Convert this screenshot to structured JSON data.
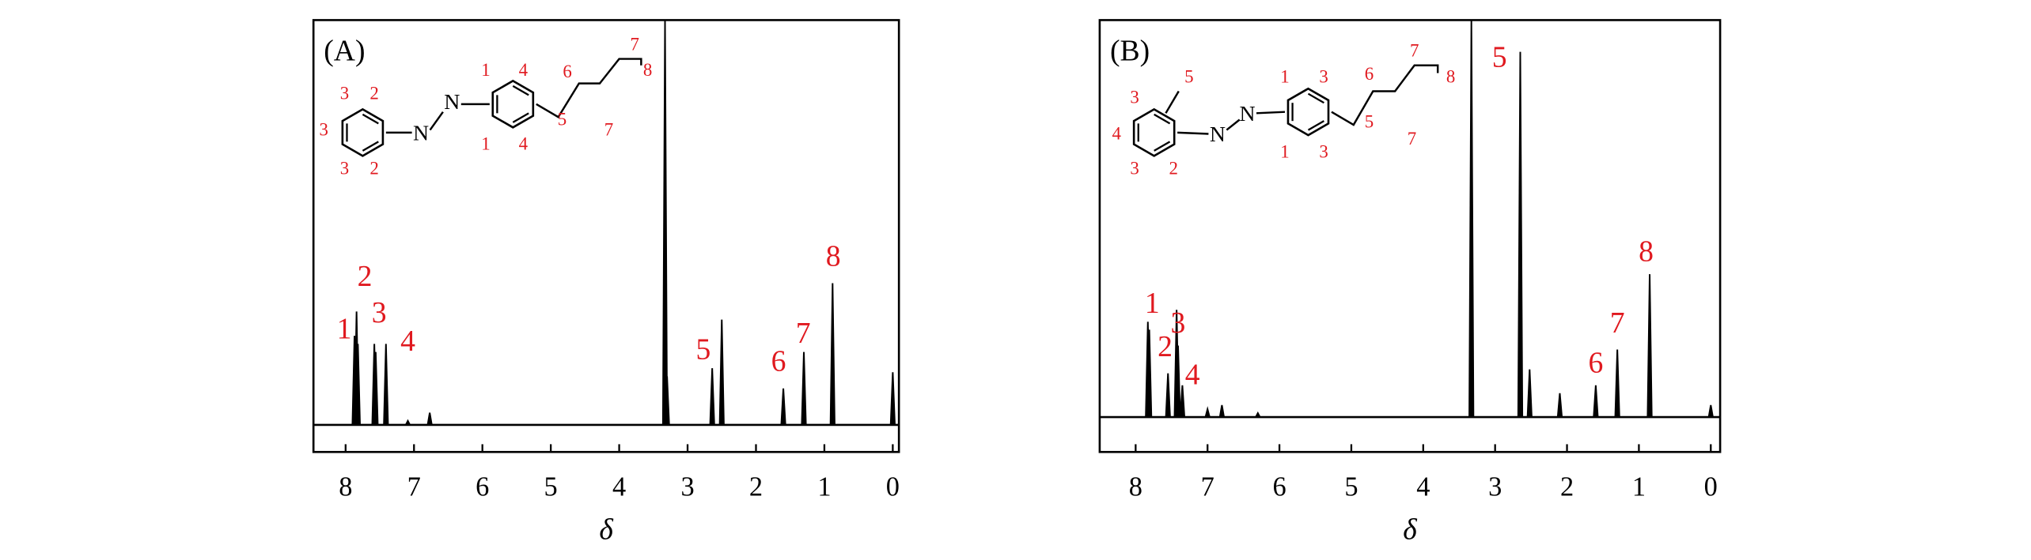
{
  "chart_data": [
    {
      "type": "spectrum",
      "title": "(A)",
      "x_label": "δ",
      "color": "#000000",
      "annotation_color": "#e0191f",
      "xlim": [
        8.47,
        -0.09
      ],
      "ylim": [
        -6.7,
        100
      ],
      "xticks": [
        8,
        7,
        6,
        5,
        4,
        3,
        2,
        1,
        0
      ],
      "x": [
        7.87,
        7.84,
        7.82,
        7.58,
        7.56,
        7.41,
        7.09,
        6.77,
        3.33,
        3.3,
        2.64,
        2.5,
        1.6,
        1.3,
        0.88,
        0.0
      ],
      "values": [
        22,
        28,
        20,
        20,
        18,
        20,
        1,
        3,
        100,
        12,
        14,
        26,
        9,
        18,
        35,
        13
      ],
      "annotations": [
        {
          "text": "1",
          "x": 8.02,
          "y": 23
        },
        {
          "text": "2",
          "x": 7.72,
          "y": 36
        },
        {
          "text": "3",
          "x": 7.51,
          "y": 27
        },
        {
          "text": "4",
          "x": 7.09,
          "y": 20
        },
        {
          "text": "5",
          "x": 2.77,
          "y": 18
        },
        {
          "text": "6",
          "x": 1.67,
          "y": 15
        },
        {
          "text": "7",
          "x": 1.31,
          "y": 22
        },
        {
          "text": "8",
          "x": 0.87,
          "y": 41
        }
      ],
      "structure": {
        "atoms": [
          "N",
          "N"
        ],
        "labels": [
          "3",
          "2",
          "3",
          "3",
          "2",
          "1",
          "4",
          "1",
          "4",
          "6",
          "5",
          "7",
          "7",
          "8"
        ]
      }
    },
    {
      "type": "spectrum",
      "title": "(B)",
      "x_label": "δ",
      "color": "#000000",
      "annotation_color": "#e0191f",
      "xlim": [
        8.5,
        -0.13
      ],
      "ylim": [
        -8.8,
        100
      ],
      "xticks": [
        8,
        7,
        6,
        5,
        4,
        3,
        2,
        1,
        0
      ],
      "x": [
        7.83,
        7.81,
        7.55,
        7.43,
        7.41,
        7.35,
        7.0,
        6.8,
        6.3,
        3.33,
        2.65,
        2.52,
        2.1,
        1.6,
        1.3,
        0.85,
        0.0
      ],
      "values": [
        24,
        22,
        11,
        27,
        18,
        8,
        2,
        3,
        1,
        100,
        92,
        12,
        6,
        8,
        17,
        36,
        3
      ],
      "annotations": [
        {
          "text": "1",
          "x": 7.77,
          "y": 28
        },
        {
          "text": "2",
          "x": 7.59,
          "y": 17
        },
        {
          "text": "3",
          "x": 7.41,
          "y": 23
        },
        {
          "text": "4",
          "x": 7.21,
          "y": 10
        },
        {
          "text": "5",
          "x": 2.94,
          "y": 90
        },
        {
          "text": "6",
          "x": 1.6,
          "y": 13
        },
        {
          "text": "7",
          "x": 1.3,
          "y": 23
        },
        {
          "text": "8",
          "x": 0.9,
          "y": 41
        }
      ],
      "structure": {
        "atoms": [
          "N",
          "N"
        ],
        "labels": [
          "5",
          "3",
          "4",
          "3",
          "2",
          "1",
          "3",
          "1",
          "3",
          "6",
          "5",
          "7",
          "7",
          "8"
        ]
      }
    }
  ]
}
